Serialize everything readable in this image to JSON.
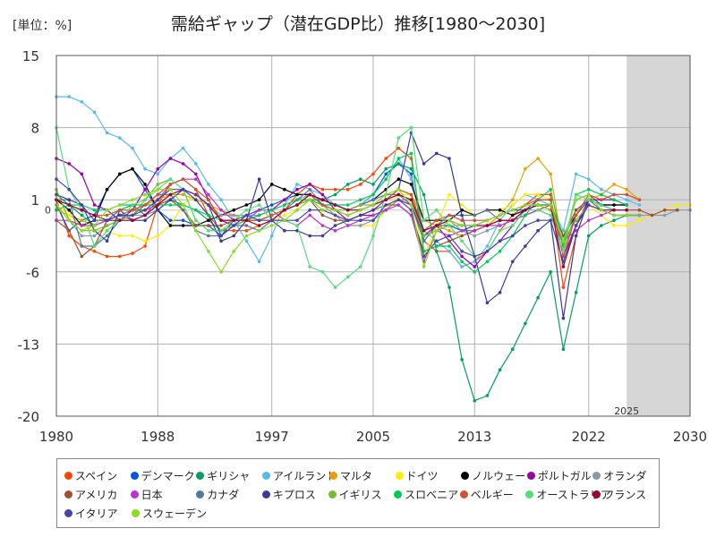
{
  "header": {
    "unit": "[単位：%]",
    "title": "需給ギャップ（潜在GDP比）推移[1980～2030]"
  },
  "chart_data": {
    "type": "line",
    "x_ticks": [
      "1980",
      "1988",
      "1997",
      "2005",
      "2013",
      "2022",
      "2030"
    ],
    "y_ticks": [
      "15",
      "8",
      "1",
      "-6",
      "-13",
      "-20"
    ],
    "zero_label": "0",
    "xlim": [
      1980,
      2030
    ],
    "ylim": [
      -20,
      15
    ],
    "forecast_start": 2025,
    "forecast_label": "2025",
    "grid": true,
    "legend_position": "bottom",
    "series": [
      {
        "name": "スペイン",
        "color": "#ff4500",
        "values": [
          1.0,
          -2.5,
          -3.5,
          -4.0,
          -4.5,
          -4.5,
          -4.2,
          -3.5,
          0.5,
          2.5,
          3.0,
          2.0,
          -0.5,
          -2.0,
          -2.0,
          -2.0,
          -1.5,
          -1.0,
          0.0,
          1.5,
          2.5,
          2.0,
          2.0,
          2.0,
          2.5,
          3.5,
          5.0,
          6.0,
          5.0,
          -3.0,
          -4.0,
          -4.0,
          -5.5,
          -5.0,
          -4.0,
          -2.0,
          -0.5,
          0.5,
          1.5,
          1.5,
          -7.5,
          -2.5,
          1.0,
          1.0,
          1.5,
          1.5,
          1.0
        ]
      },
      {
        "name": "デンマーク",
        "color": "#0055dd",
        "values": [
          0.5,
          -2.0,
          -1.0,
          -0.5,
          2.0,
          3.5,
          4.0,
          2.0,
          0.0,
          -1.0,
          -1.0,
          -1.5,
          -1.5,
          -2.5,
          -1.0,
          -0.5,
          0.0,
          0.5,
          1.0,
          1.5,
          1.5,
          1.0,
          0.5,
          0.0,
          0.5,
          1.5,
          3.5,
          4.5,
          3.5,
          -3.0,
          -1.5,
          -1.5,
          -2.0,
          -1.5,
          -1.0,
          -0.5,
          0.0,
          0.0,
          0.5,
          0.5,
          -3.0,
          1.0,
          1.5,
          0.5,
          0.5,
          0.5
        ]
      },
      {
        "name": "ギリシャ",
        "color": "#00a060",
        "values": [
          1.5,
          0.5,
          -0.5,
          -1.5,
          -1.0,
          0.0,
          0.5,
          -0.5,
          0.0,
          1.0,
          0.5,
          0.0,
          -1.0,
          -2.0,
          -1.5,
          -1.0,
          -1.0,
          -0.5,
          0.0,
          0.5,
          1.0,
          1.0,
          1.5,
          2.5,
          3.0,
          2.5,
          4.0,
          4.5,
          4.0,
          1.5,
          -4.0,
          -7.5,
          -14.5,
          -18.5,
          -18.0,
          -15.5,
          -13.5,
          -11.0,
          -8.5,
          -6.0,
          -13.5,
          -8.0,
          -2.5,
          -1.5,
          -1.0,
          -0.5,
          -0.5
        ]
      },
      {
        "name": "アイルランド",
        "color": "#55bbee",
        "values": [
          11.0,
          11.0,
          10.5,
          9.5,
          7.5,
          7.0,
          6.0,
          4.0,
          3.5,
          5.0,
          6.0,
          4.5,
          2.5,
          1.0,
          -1.0,
          -3.0,
          -5.0,
          -2.5,
          0.5,
          2.5,
          2.0,
          1.5,
          0.5,
          0.0,
          0.5,
          1.5,
          3.0,
          5.0,
          3.0,
          -2.0,
          -3.0,
          -4.0,
          -5.5,
          -5.0,
          -3.5,
          -1.0,
          0.5,
          1.5,
          1.0,
          0.5,
          -2.0,
          3.5,
          3.0,
          2.0,
          1.5,
          1.0,
          0.5
        ]
      },
      {
        "name": "マルタ",
        "color": "#e8a000",
        "values": [
          0.0,
          -0.5,
          -1.0,
          -1.5,
          -1.0,
          -0.5,
          0.0,
          0.5,
          1.0,
          1.5,
          1.5,
          1.0,
          0.5,
          0.0,
          -0.5,
          -1.0,
          -1.0,
          -0.5,
          0.0,
          0.5,
          1.0,
          0.5,
          0.0,
          -0.5,
          0.0,
          0.5,
          1.0,
          2.0,
          1.5,
          -1.0,
          -1.5,
          -2.0,
          -2.5,
          -2.0,
          -1.5,
          -0.5,
          1.0,
          4.0,
          5.0,
          3.5,
          -4.0,
          -0.5,
          1.0,
          1.5,
          2.5,
          2.0,
          1.0
        ]
      },
      {
        "name": "ドイツ",
        "color": "#ffee00",
        "values": [
          0.5,
          -0.5,
          -1.5,
          -2.0,
          -2.0,
          -2.5,
          -2.5,
          -3.0,
          -2.5,
          -1.5,
          0.5,
          1.5,
          0.5,
          -1.0,
          -1.0,
          -1.0,
          -1.5,
          -1.0,
          -0.5,
          0.0,
          1.0,
          0.5,
          -0.5,
          -1.5,
          -1.5,
          -1.5,
          0.0,
          1.5,
          1.5,
          -4.5,
          -1.5,
          1.5,
          0.5,
          -0.5,
          0.0,
          0.0,
          0.5,
          1.5,
          1.5,
          1.0,
          -3.0,
          -1.0,
          0.5,
          -0.5,
          -1.5,
          -1.5,
          -1.0,
          -0.5,
          0.0,
          0.5,
          0.5
        ]
      },
      {
        "name": "ノルウェー",
        "color": "#000000",
        "values": [
          1.0,
          0.0,
          -1.5,
          -1.0,
          2.0,
          3.5,
          4.0,
          2.5,
          0.0,
          -1.5,
          -1.5,
          -1.5,
          -1.0,
          -0.5,
          0.0,
          0.5,
          1.0,
          2.5,
          2.0,
          1.5,
          1.5,
          1.0,
          0.5,
          0.0,
          0.5,
          1.0,
          2.0,
          3.0,
          2.5,
          -1.0,
          -1.0,
          -1.0,
          0.0,
          -0.5,
          0.0,
          0.0,
          -0.5,
          0.0,
          0.5,
          0.5,
          -2.5,
          -0.5,
          1.0,
          0.5,
          0.5,
          0.5
        ]
      },
      {
        "name": "ポルトガル",
        "color": "#9900aa",
        "values": [
          5.0,
          4.5,
          3.5,
          0.5,
          0.0,
          -1.0,
          0.0,
          2.0,
          4.0,
          5.0,
          4.5,
          3.5,
          1.0,
          -1.0,
          -1.5,
          -1.0,
          -0.5,
          0.0,
          1.0,
          2.0,
          2.5,
          1.5,
          0.0,
          -1.0,
          -0.5,
          -0.5,
          0.0,
          1.0,
          0.5,
          -2.5,
          -1.5,
          -3.0,
          -4.5,
          -5.5,
          -4.0,
          -3.0,
          -1.5,
          0.0,
          1.0,
          1.0,
          -4.5,
          -1.5,
          1.0,
          1.0,
          1.0,
          0.5
        ]
      },
      {
        "name": "オランダ",
        "color": "#8899aa",
        "values": [
          0.5,
          -1.0,
          -2.5,
          -2.5,
          -1.5,
          -1.0,
          -0.5,
          -0.5,
          0.0,
          1.0,
          2.0,
          1.5,
          0.5,
          -0.5,
          -0.5,
          -0.5,
          -0.5,
          0.0,
          0.5,
          1.0,
          1.5,
          0.5,
          -0.5,
          -1.5,
          -1.5,
          -1.0,
          0.0,
          1.0,
          1.0,
          -2.0,
          -1.5,
          -1.0,
          -2.0,
          -2.5,
          -2.0,
          -1.5,
          -1.0,
          0.0,
          0.5,
          0.5,
          -3.0,
          0.0,
          1.0,
          0.0,
          -0.5,
          -0.5,
          -0.5,
          -0.5,
          -0.5,
          0.0,
          0.0
        ]
      },
      {
        "name": "アメリカ",
        "color": "#a0522d",
        "values": [
          -1.0,
          -2.0,
          -4.5,
          -3.5,
          -1.0,
          -0.5,
          0.0,
          0.0,
          0.5,
          1.0,
          0.0,
          -1.5,
          -1.5,
          -1.5,
          -1.0,
          -1.0,
          -1.0,
          -0.5,
          0.0,
          0.5,
          1.0,
          -0.5,
          -1.0,
          -1.0,
          -0.5,
          0.0,
          0.5,
          0.5,
          -0.5,
          -4.0,
          -3.5,
          -3.0,
          -2.5,
          -2.0,
          -1.5,
          -1.0,
          -1.0,
          -0.5,
          0.0,
          0.5,
          -2.5,
          0.0,
          1.0,
          0.5,
          0.0,
          0.0,
          0.0,
          -0.5,
          0.0,
          0.0
        ]
      },
      {
        "name": "日本",
        "color": "#bb33cc",
        "values": [
          -1.0,
          -1.0,
          -1.5,
          -1.5,
          -1.0,
          -0.5,
          -1.0,
          -0.5,
          1.0,
          2.5,
          3.0,
          3.0,
          1.5,
          0.0,
          -1.0,
          -1.0,
          0.0,
          0.0,
          -1.0,
          -1.5,
          -0.5,
          -1.5,
          -2.0,
          -1.5,
          -1.0,
          -0.5,
          0.0,
          0.5,
          -0.5,
          -5.0,
          -2.0,
          -2.5,
          -2.0,
          -2.0,
          -1.5,
          -1.5,
          -1.0,
          -0.5,
          0.0,
          -0.5,
          -3.0,
          -2.0,
          -1.0,
          -0.5,
          0.0,
          0.0
        ]
      },
      {
        "name": "カナダ",
        "color": "#557799",
        "values": [
          1.0,
          1.0,
          -3.5,
          -3.5,
          -2.5,
          -1.0,
          -0.5,
          0.5,
          1.5,
          1.5,
          0.0,
          -2.0,
          -2.5,
          -2.5,
          -1.5,
          -1.5,
          -2.0,
          -1.0,
          0.0,
          1.0,
          2.0,
          0.5,
          0.5,
          0.0,
          0.5,
          1.0,
          1.5,
          1.5,
          0.5,
          -3.0,
          -1.5,
          -0.5,
          -0.5,
          -0.5,
          0.0,
          -1.0,
          -1.0,
          0.0,
          0.5,
          0.5,
          -3.5,
          -0.5,
          1.0,
          0.0,
          -0.5,
          -0.5,
          -0.5
        ]
      },
      {
        "name": "キプロス",
        "color": "#3a3a99",
        "values": [
          1.5,
          1.0,
          0.5,
          -2.0,
          -3.0,
          0.0,
          -1.0,
          -1.0,
          0.0,
          1.0,
          2.0,
          1.0,
          -0.5,
          -3.0,
          -2.5,
          -1.0,
          3.0,
          -1.0,
          -2.0,
          -2.0,
          -2.5,
          -2.5,
          -1.5,
          -1.0,
          -0.5,
          0.0,
          1.0,
          2.0,
          7.5,
          4.5,
          5.5,
          5.0,
          -0.5,
          -4.5,
          -9.0,
          -8.0,
          -5.0,
          -3.5,
          -2.0,
          -1.0,
          -10.5,
          -2.5,
          1.0,
          0.5,
          0.0,
          0.0
        ]
      },
      {
        "name": "イギリス",
        "color": "#77bb33",
        "values": [
          2.0,
          -1.0,
          -2.0,
          -2.0,
          -1.5,
          -1.0,
          -0.5,
          1.0,
          2.5,
          3.0,
          2.0,
          -1.0,
          -2.0,
          -2.0,
          -1.5,
          -1.0,
          -1.0,
          -0.5,
          0.0,
          0.5,
          1.0,
          0.5,
          0.0,
          0.0,
          0.5,
          0.5,
          1.0,
          1.5,
          1.0,
          -2.5,
          -2.0,
          -1.5,
          -1.5,
          -1.5,
          -1.0,
          -0.5,
          0.0,
          0.5,
          0.5,
          0.0,
          -3.0,
          -1.0,
          0.5,
          0.0,
          -0.5,
          -0.5,
          -0.5
        ]
      },
      {
        "name": "スロベニア",
        "color": "#00cc55",
        "values": [
          0.0,
          0.5,
          0.5,
          0.0,
          0.0,
          0.5,
          0.5,
          0.5,
          0.5,
          0.5,
          0.5,
          0.0,
          -0.5,
          -1.0,
          -1.0,
          -1.0,
          -0.5,
          0.0,
          0.5,
          1.0,
          1.0,
          0.5,
          0.5,
          0.5,
          1.0,
          1.5,
          3.0,
          5.0,
          5.5,
          -4.0,
          -3.5,
          -3.5,
          -5.0,
          -6.0,
          -5.0,
          -4.0,
          -2.5,
          -0.5,
          1.0,
          2.0,
          -3.5,
          1.5,
          2.0,
          1.5,
          1.0,
          0.5
        ]
      },
      {
        "name": "ベルギー",
        "color": "#cc5533",
        "values": [
          1.0,
          0.5,
          0.0,
          -0.5,
          -0.5,
          0.0,
          0.0,
          0.5,
          1.5,
          2.5,
          3.0,
          2.0,
          1.0,
          -1.0,
          -1.0,
          -1.0,
          -1.0,
          -0.5,
          0.0,
          0.5,
          1.5,
          0.5,
          0.0,
          -0.5,
          0.0,
          0.5,
          1.0,
          2.0,
          1.5,
          -2.0,
          -1.0,
          -0.5,
          -1.0,
          -1.0,
          -1.0,
          -0.5,
          0.0,
          0.5,
          1.0,
          1.0,
          -4.5,
          -0.5,
          1.5,
          1.0,
          1.5,
          1.5,
          1.0
        ]
      },
      {
        "name": "オーストラリア",
        "color": "#55dd77",
        "values": [
          8.0,
          2.0,
          0.0,
          -3.5,
          -2.0,
          -1.0,
          0.5,
          1.0,
          2.0,
          3.0,
          2.0,
          -1.0,
          -2.0,
          -2.0,
          -1.0,
          0.0,
          0.5,
          -1.0,
          -1.0,
          -1.5,
          -5.5,
          -6.0,
          -7.5,
          -6.5,
          -5.5,
          -2.5,
          1.5,
          7.0,
          8.0,
          -1.0,
          0.0,
          -1.5,
          -3.0,
          -4.5,
          -4.0,
          -2.0,
          -1.5,
          0.0,
          0.0,
          -0.5,
          -4.0,
          1.5,
          1.0,
          0.5,
          0.0,
          0.0
        ]
      },
      {
        "name": "フランス",
        "color": "#990033",
        "values": [
          1.0,
          0.5,
          0.0,
          -0.5,
          -1.0,
          -1.0,
          -1.0,
          -0.5,
          0.5,
          1.5,
          2.0,
          1.5,
          0.5,
          -1.0,
          -1.0,
          -1.0,
          -1.5,
          -1.0,
          0.0,
          0.5,
          1.5,
          1.0,
          0.5,
          0.0,
          0.0,
          0.5,
          1.0,
          1.5,
          1.0,
          -2.0,
          -1.5,
          -1.0,
          -1.5,
          -1.5,
          -1.5,
          -1.0,
          -1.0,
          0.0,
          0.5,
          0.5,
          -5.5,
          -1.5,
          0.5,
          0.0,
          0.0,
          0.0
        ]
      },
      {
        "name": "イタリア",
        "color": "#4444aa",
        "values": [
          3.0,
          2.0,
          0.5,
          -1.0,
          -1.0,
          -0.5,
          -0.5,
          0.0,
          1.0,
          2.0,
          2.0,
          1.5,
          0.5,
          -2.5,
          -1.5,
          -0.5,
          -1.0,
          -1.0,
          -1.0,
          -1.0,
          0.0,
          0.0,
          -0.5,
          -1.0,
          -1.0,
          -1.0,
          0.5,
          1.0,
          0.0,
          -4.5,
          -3.0,
          -2.5,
          -4.0,
          -4.5,
          -4.0,
          -3.0,
          -2.5,
          -1.5,
          -1.0,
          -1.0,
          -5.0,
          -1.5,
          0.5,
          0.0,
          -0.5,
          -0.5
        ]
      },
      {
        "name": "スウェーデン",
        "color": "#88dd22",
        "values": [
          0.5,
          -1.0,
          -2.0,
          -1.5,
          0.0,
          0.5,
          1.0,
          1.5,
          2.0,
          2.0,
          0.5,
          -2.0,
          -4.0,
          -6.0,
          -4.0,
          -2.5,
          -2.0,
          -1.5,
          -1.0,
          0.0,
          1.0,
          0.0,
          0.0,
          -0.5,
          0.0,
          0.5,
          1.5,
          2.0,
          0.5,
          -5.5,
          -2.0,
          -1.0,
          -1.5,
          -1.5,
          -1.0,
          -0.5,
          0.0,
          0.5,
          0.5,
          0.5,
          -3.0,
          1.0,
          1.5,
          0.0,
          -0.5,
          -0.5
        ]
      }
    ]
  }
}
